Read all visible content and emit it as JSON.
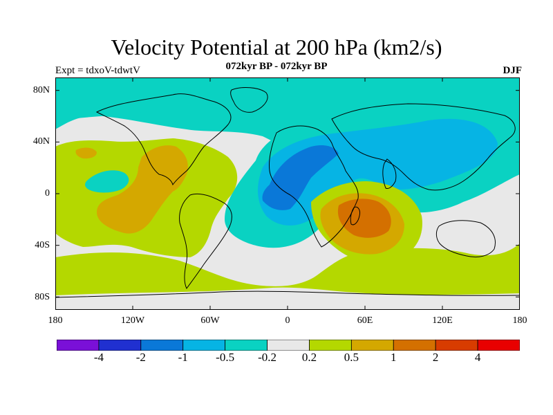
{
  "title": "Velocity Potential at 200 hPa (km2/s)",
  "subtitle": "072kyr BP - 072kyr BP",
  "left_label": "Expt = tdxoV-tdwtV",
  "right_label": "DJF",
  "lat_ticks": [
    "80N",
    "40N",
    "0",
    "40S",
    "80S"
  ],
  "lon_ticks": [
    "180",
    "120W",
    "60W",
    "0",
    "60E",
    "120E",
    "180"
  ],
  "colorbar": {
    "colors": [
      "#7a10d8",
      "#2030d0",
      "#0a78d8",
      "#06b4e4",
      "#0ad2c2",
      "#e8e8e8",
      "#b4d800",
      "#d4a800",
      "#d47000",
      "#d83c00",
      "#e80000"
    ],
    "labels": [
      "-4",
      "-2",
      "-1",
      "-0.5",
      "-0.2",
      "0.2",
      "0.5",
      "1",
      "2",
      "4"
    ]
  },
  "colors": {
    "neutral": "#e8e8e8",
    "positive_weak": "#b4d800",
    "positive_mid": "#d4a800",
    "positive_strong": "#d47000",
    "negative_weak": "#0ad2c2",
    "negative_mid": "#06b4e4",
    "negative_strong": "#0a78d8",
    "coastline": "#000000"
  }
}
